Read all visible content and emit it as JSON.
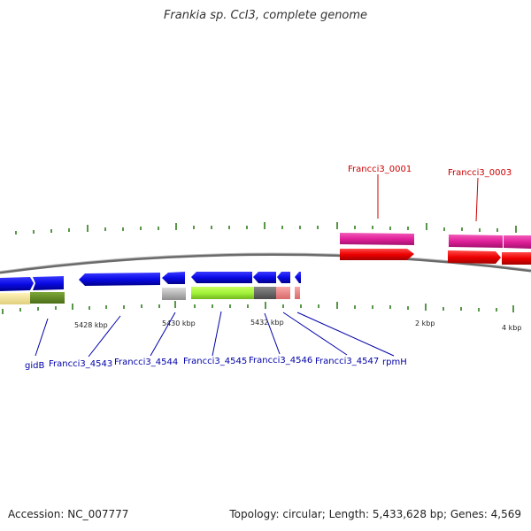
{
  "title": "Frankia sp. CcI3, complete genome",
  "footer": {
    "accession": "Accession: NC_007777",
    "stats": "Topology: circular; Length: 5,433,628 bp; Genes: 4,569"
  },
  "colors": {
    "backbone": "#707070",
    "tick": "#2e7d1a",
    "forward_label": "#cc0000",
    "reverse_label": "#0000aa",
    "blue_gene": "#0a0ae6",
    "magenta_gene": "#e0219a",
    "red_gene": "#ee0000"
  },
  "scale_labels": [
    {
      "id": "kbp-5428",
      "text": "5428 kbp"
    },
    {
      "id": "kbp-5430",
      "text": "5430 kbp"
    },
    {
      "id": "kbp-5432",
      "text": "5432 kbp"
    },
    {
      "id": "kbp-2",
      "text": "2 kbp"
    },
    {
      "id": "kbp-4",
      "text": "4 kbp"
    }
  ],
  "forward_labels": [
    {
      "id": "francci3-0001",
      "text": "Francci3_0001"
    },
    {
      "id": "francci3-0003",
      "text": "Francci3_0003"
    }
  ],
  "reverse_labels": [
    {
      "id": "gidb",
      "text": "gidB"
    },
    {
      "id": "francci3-4543",
      "text": "Francci3_4543"
    },
    {
      "id": "francci3-4544",
      "text": "Francci3_4544"
    },
    {
      "id": "francci3-4545",
      "text": "Francci3_4545"
    },
    {
      "id": "francci3-4546",
      "text": "Francci3_4546"
    },
    {
      "id": "francci3-4547",
      "text": "Francci3_4547"
    },
    {
      "id": "rpmh",
      "text": "rpmH"
    }
  ]
}
